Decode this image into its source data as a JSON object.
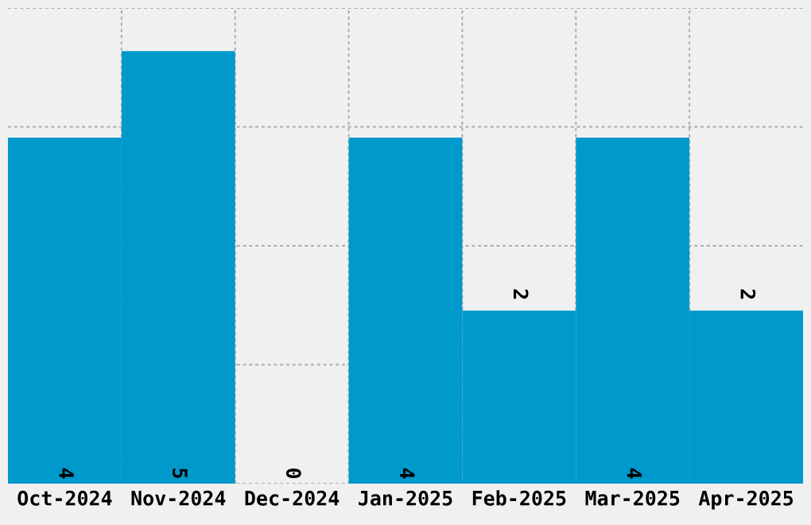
{
  "chart_data": {
    "type": "bar",
    "categories": [
      "Oct-2024",
      "Nov-2024",
      "Dec-2024",
      "Jan-2025",
      "Feb-2025",
      "Mar-2025",
      "Apr-2025"
    ],
    "values": [
      4,
      5,
      0,
      4,
      2,
      4,
      2
    ],
    "color": "#0099cc",
    "ylim": [
      0,
      5.5
    ],
    "yticks": [
      {
        "value": 0,
        "label": null
      },
      {
        "value": 1.375,
        "label": null
      },
      {
        "value": 2.75,
        "label": null
      },
      {
        "value": 4.125,
        "label": null
      },
      {
        "value": 5.5,
        "label": null
      }
    ],
    "tick_labels": "x",
    "grid": true,
    "data_labels": true
  }
}
